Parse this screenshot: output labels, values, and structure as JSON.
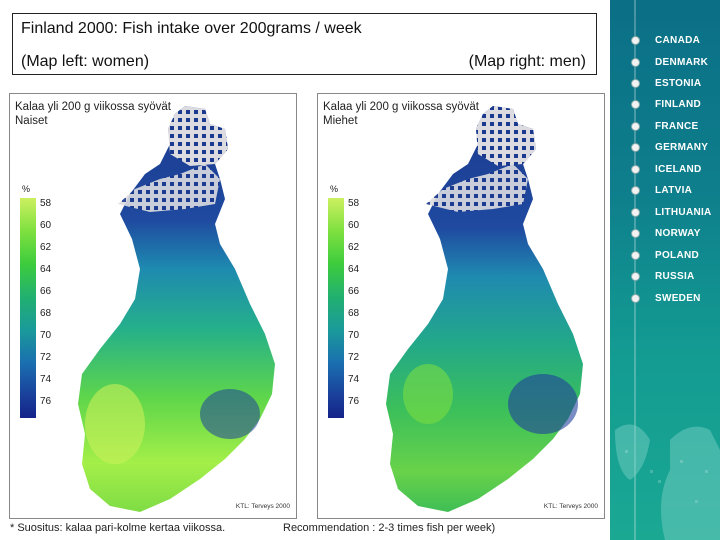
{
  "header": {
    "title": "Finland 2000: Fish intake over 200grams / week",
    "subtitle_left": "(Map left: women)",
    "subtitle_right": "(Map right: men)"
  },
  "maps": [
    {
      "caption_line1": "Kalaa yli 200 g viikossa syövät",
      "caption_line2": "Naiset",
      "legend_unit": "%",
      "credit": "KTL: Terveys 2000"
    },
    {
      "caption_line1": "Kalaa yli 200 g viikossa syövät",
      "caption_line2": "Miehet",
      "legend_unit": "%",
      "credit": "KTL: Terveys 2000"
    }
  ],
  "legend_ticks": [
    "58",
    "60",
    "62",
    "64",
    "66",
    "68",
    "70",
    "72",
    "74",
    "76"
  ],
  "footnotes": {
    "left": "* Suositus: kalaa pari-kolme kertaa viikossa.",
    "right": "Recommendation : 2-3 times fish per week)"
  },
  "nav": {
    "items": [
      {
        "label": "CANADA"
      },
      {
        "label": "DENMARK"
      },
      {
        "label": "ESTONIA"
      },
      {
        "label": "FINLAND"
      },
      {
        "label": "FRANCE"
      },
      {
        "label": "GERMANY"
      },
      {
        "label": "ICELAND"
      },
      {
        "label": "LATVIA"
      },
      {
        "label": "LITHUANIA"
      },
      {
        "label": "NORWAY"
      },
      {
        "label": "POLAND"
      },
      {
        "label": "RUSSIA"
      },
      {
        "label": "SWEDEN"
      }
    ]
  },
  "colors": {
    "north": "#1b3a8f",
    "middle": "#1f8fb0",
    "south": "#8ee84a",
    "sidebar": "#0e7e8c"
  }
}
